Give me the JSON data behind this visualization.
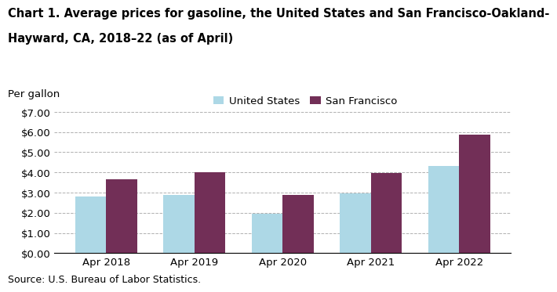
{
  "title_line1": "Chart 1. Average prices for gasoline, the United States and San Francisco-Oakland-",
  "title_line2": "Hayward, CA, 2018–22 (as of April)",
  "per_gallon_label": "Per gallon",
  "source": "Source: U.S. Bureau of Labor Statistics.",
  "categories": [
    "Apr 2018",
    "Apr 2019",
    "Apr 2020",
    "Apr 2021",
    "Apr 2022"
  ],
  "us_values": [
    2.8,
    2.9,
    1.95,
    2.96,
    4.31
  ],
  "sf_values": [
    3.65,
    4.01,
    2.88,
    3.96,
    5.88
  ],
  "us_color": "#add8e6",
  "sf_color": "#722f57",
  "ylim": [
    0,
    7.0
  ],
  "yticks": [
    0.0,
    1.0,
    2.0,
    3.0,
    4.0,
    5.0,
    6.0,
    7.0
  ],
  "legend_labels": [
    "United States",
    "San Francisco"
  ],
  "bar_width": 0.35,
  "grid_color": "#b0b0b0",
  "background_color": "#ffffff",
  "title_fontsize": 10.5,
  "tick_fontsize": 9.5,
  "legend_fontsize": 9.5,
  "source_fontsize": 9,
  "per_gallon_fontsize": 9.5
}
